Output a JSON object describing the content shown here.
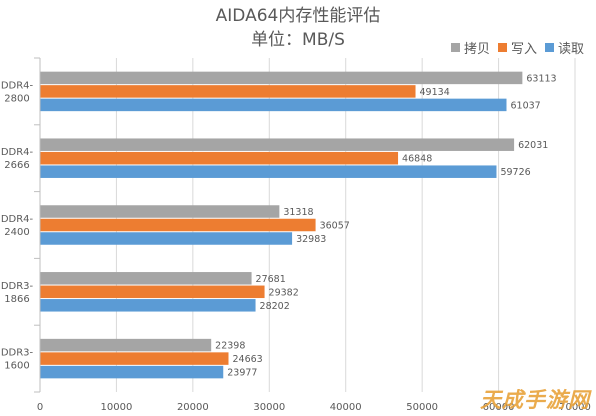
{
  "chart_data": {
    "type": "bar",
    "orientation": "horizontal",
    "title": "AIDA64内存性能评估",
    "subtitle": "单位：MB/S",
    "categories": [
      "DDR4-2800",
      "DDR4-2666",
      "DDR4-2400",
      "DDR3-1866",
      "DDR3-1600"
    ],
    "category_lines": [
      [
        "DDR4-",
        "2800"
      ],
      [
        "DDR4-",
        "2666"
      ],
      [
        "DDR4-",
        "2400"
      ],
      [
        "DDR3-",
        "1866"
      ],
      [
        "DDR3-",
        "1600"
      ]
    ],
    "series": [
      {
        "name": "拷贝",
        "color": "#a5a5a5",
        "values": [
          63113,
          62031,
          31318,
          27681,
          22398
        ]
      },
      {
        "name": "写入",
        "color": "#ed7d31",
        "values": [
          49134,
          46848,
          36057,
          29382,
          24663
        ]
      },
      {
        "name": "读取",
        "color": "#5b9bd5",
        "values": [
          61037,
          59726,
          32983,
          28202,
          23977
        ]
      }
    ],
    "xlim": [
      0,
      70000
    ],
    "xticks": [
      0,
      10000,
      20000,
      30000,
      40000,
      50000,
      60000,
      70000
    ],
    "grid": true,
    "legend_position": "top-right"
  },
  "watermark": "天成手游网"
}
